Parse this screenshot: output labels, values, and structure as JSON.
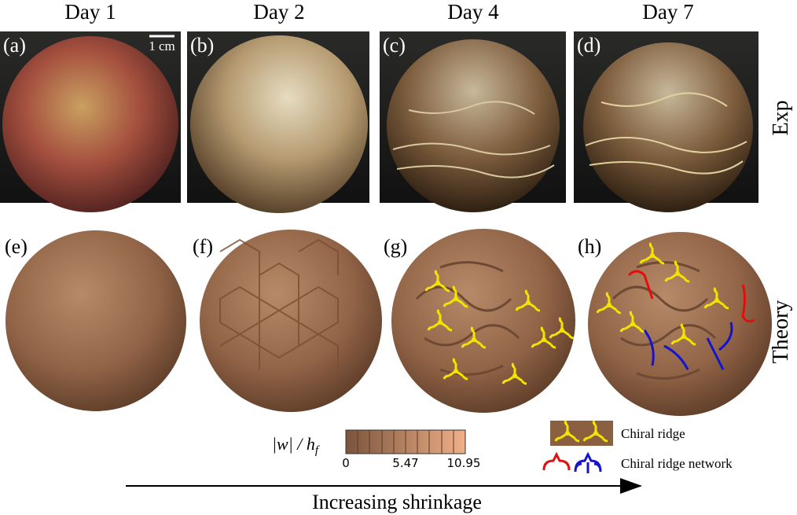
{
  "columns": [
    {
      "day": "Day 1",
      "exp_label": "(a)",
      "theory_label": "(e)"
    },
    {
      "day": "Day 2",
      "exp_label": "(b)",
      "theory_label": "(f)"
    },
    {
      "day": "Day 4",
      "exp_label": "(c)",
      "theory_label": "(g)"
    },
    {
      "day": "Day 7",
      "exp_label": "(d)",
      "theory_label": "(h)"
    }
  ],
  "scale_bar": "1 cm",
  "rows": {
    "exp": "Exp",
    "theory": "Theory"
  },
  "colorbar": {
    "label": "|w| / h",
    "label_sub": "f",
    "ticks": [
      "0",
      "5.47",
      "10.95"
    ]
  },
  "legend": {
    "chiral_ridge": "Chiral ridge",
    "chiral_ridge_network": "Chiral ridge network"
  },
  "arrow_label": "Increasing shrinkage"
}
